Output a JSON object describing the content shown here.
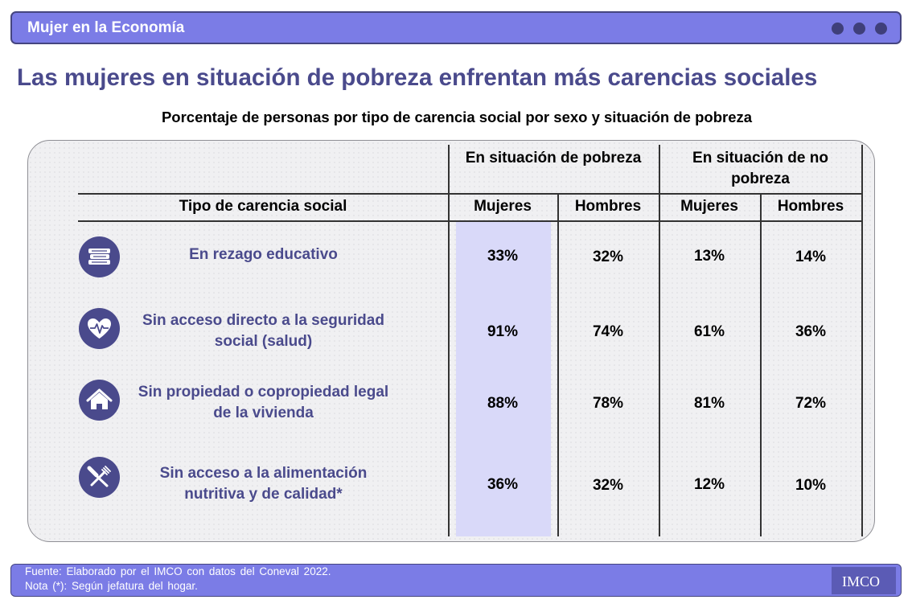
{
  "header": {
    "title": "Mujer en la Economía"
  },
  "main_title": "Las mujeres en situación de pobreza enfrentan más carencias sociales",
  "subtitle": "Porcentaje de personas por tipo de carencia social por sexo y situación de pobreza",
  "table": {
    "row_header": "Tipo de carencia social",
    "groups": [
      "En situación de pobreza",
      "En situación de no pobreza"
    ],
    "columns": [
      "Mujeres",
      "Hombres",
      "Mujeres",
      "Hombres"
    ],
    "rows": [
      {
        "icon": "books-icon",
        "label": "En rezago educativo",
        "values": [
          "33%",
          "32%",
          "13%",
          "14%"
        ]
      },
      {
        "icon": "heart-pulse-icon",
        "label": "Sin acceso directo a la seguridad social (salud)",
        "values": [
          "91%",
          "74%",
          "61%",
          "36%"
        ]
      },
      {
        "icon": "house-icon",
        "label": "Sin propiedad o copropiedad legal de la vivienda",
        "values": [
          "88%",
          "78%",
          "81%",
          "72%"
        ]
      },
      {
        "icon": "fork-knife-icon",
        "label": "Sin acceso a la alimentación nutritiva y de calidad*",
        "values": [
          "36%",
          "32%",
          "12%",
          "10%"
        ]
      }
    ]
  },
  "footer": {
    "source": "Fuente:  Elaborado por el IMCO con datos del Coneval 2022.",
    "note": "Nota (*): Según jefatura  del hogar.",
    "logo": "IMCO"
  },
  "colors": {
    "accent": "#7b7ce6",
    "dark_purple": "#4a4a8c",
    "highlight": "#d9d9f9",
    "panel": "#f0f0f2"
  }
}
